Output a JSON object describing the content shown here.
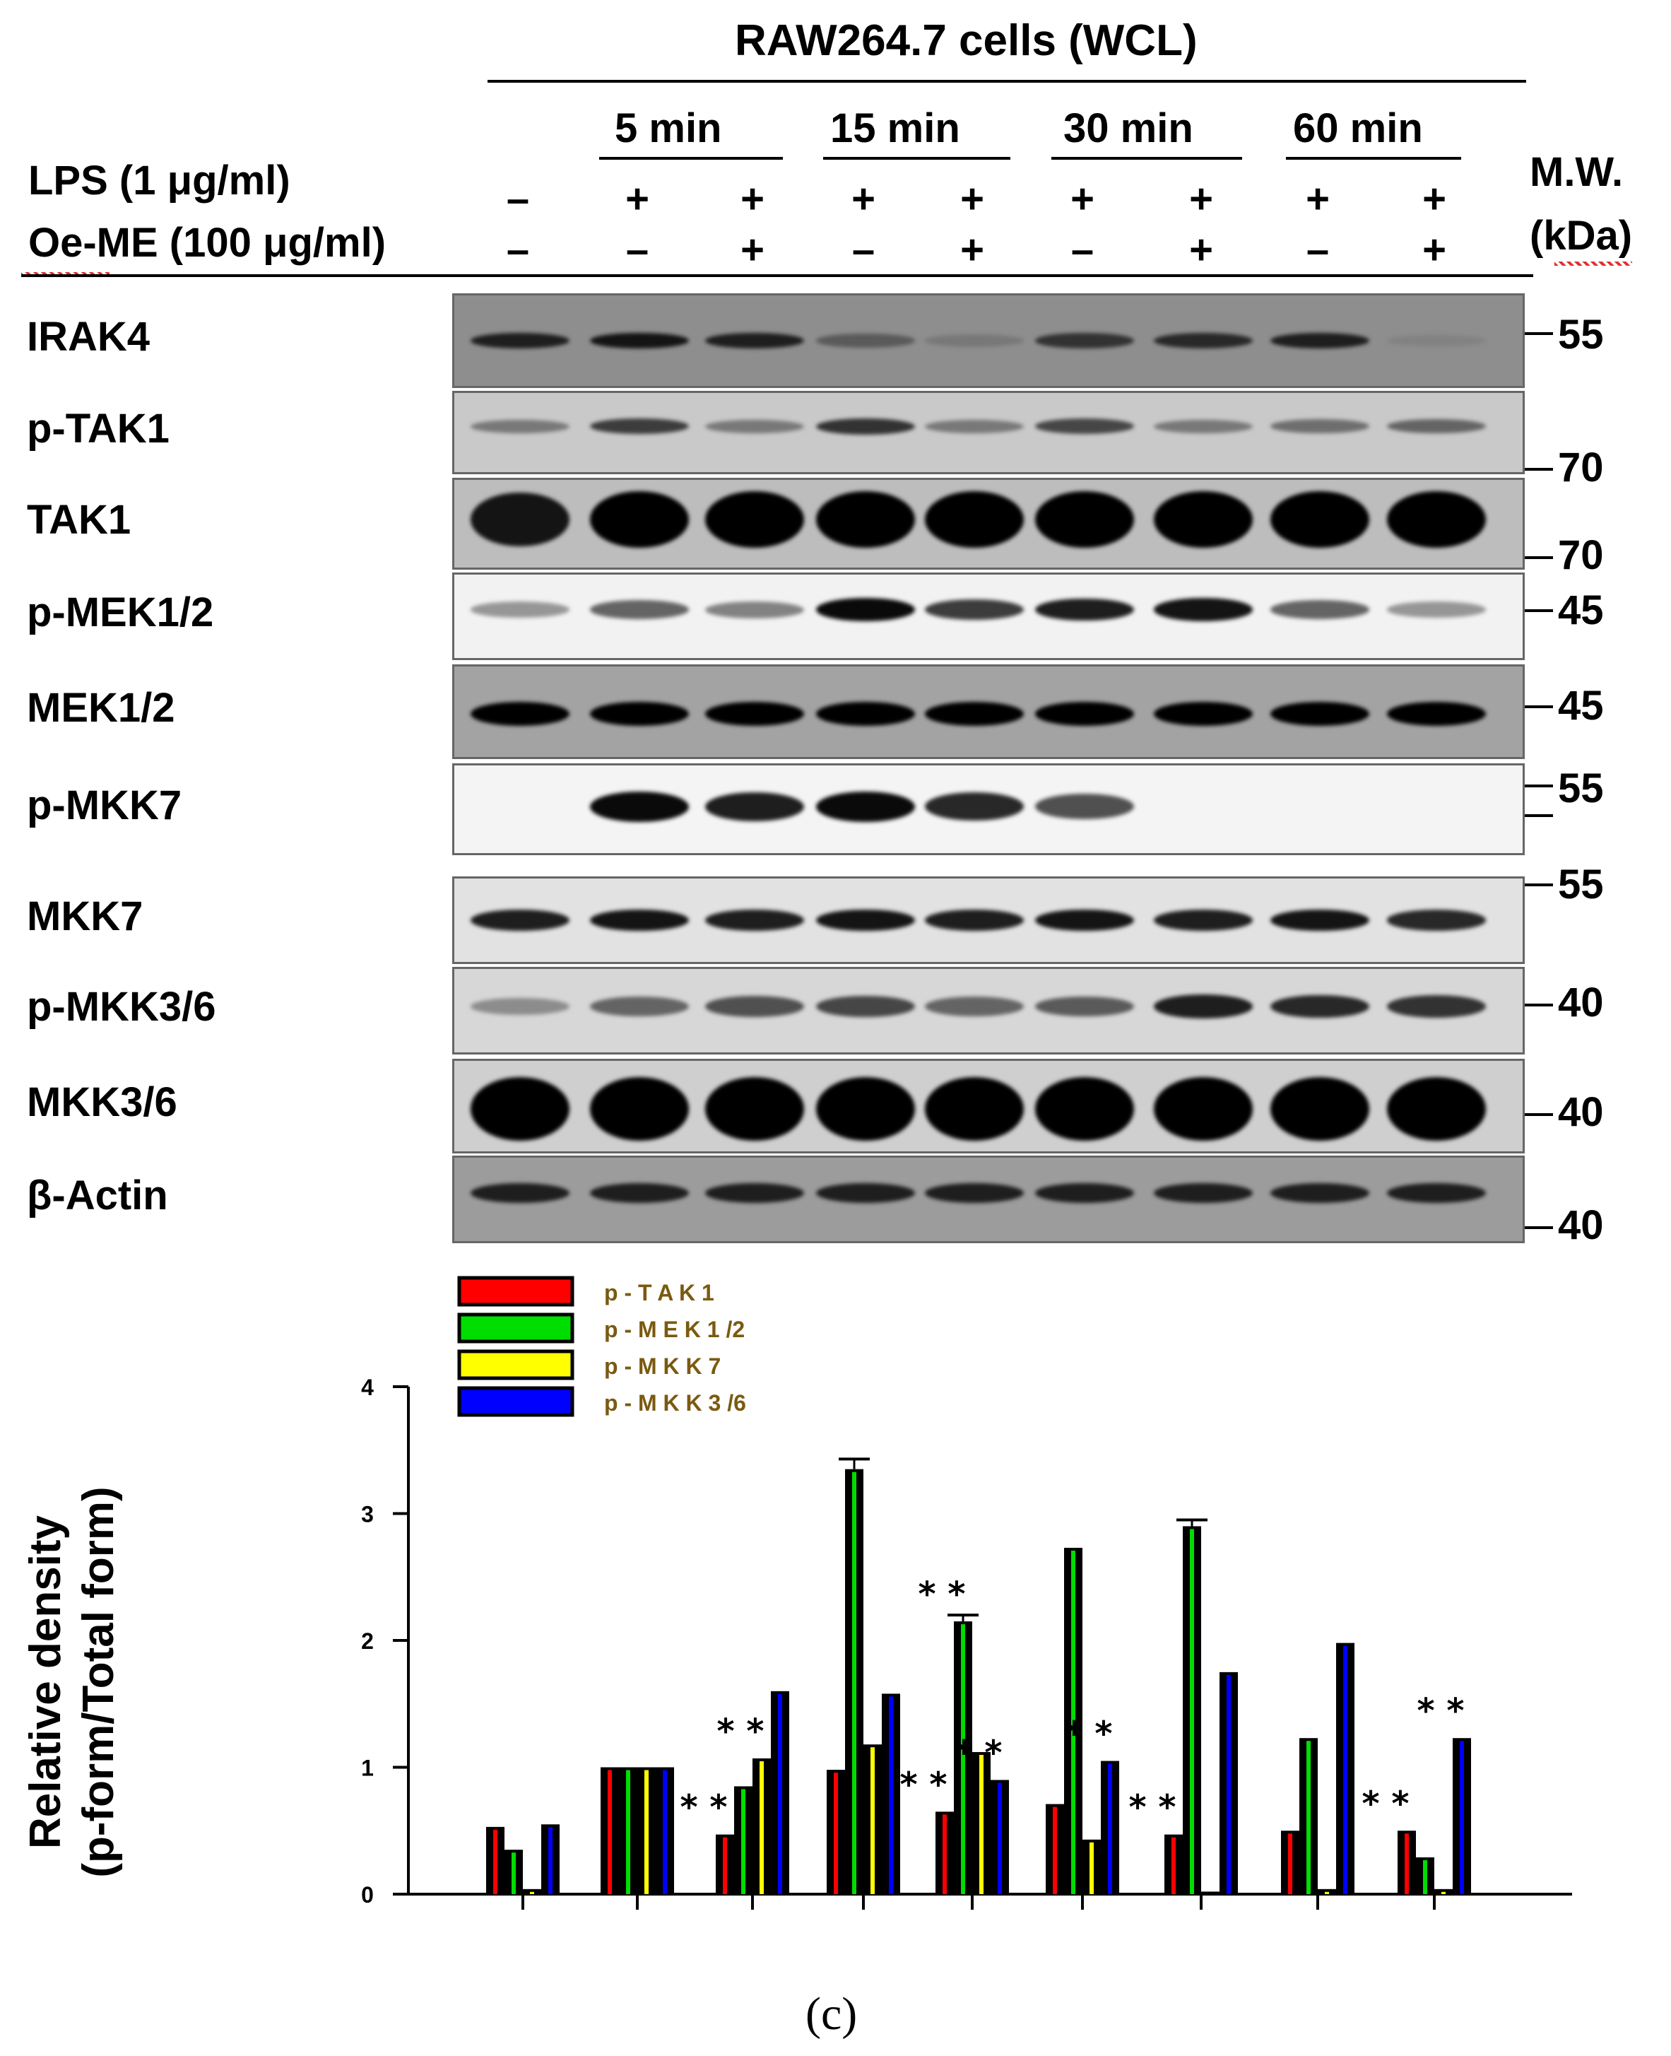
{
  "header": {
    "cell_line": "RAW264.7 cells (WCL)",
    "timepoints": [
      "5 min",
      "15 min",
      "30 min",
      "60 min"
    ],
    "treatments": [
      {
        "label": "LPS (1 μg/ml)",
        "signs": [
          "–",
          "+",
          "+",
          "+",
          "+",
          "+",
          "+",
          "+",
          "+"
        ]
      },
      {
        "label": "Oe-ME (100 μg/ml)",
        "signs": [
          "–",
          "–",
          "+",
          "–",
          "+",
          "–",
          "+",
          "–",
          "+"
        ]
      }
    ],
    "mw_label_line1": "M.W.",
    "mw_label_line2": "(kDa)"
  },
  "blots": [
    {
      "label": "IRAK4",
      "mw": [
        "55"
      ],
      "bg": "#8e8e8e",
      "intensity": [
        0.85,
        0.9,
        0.85,
        0.55,
        0.4,
        0.75,
        0.8,
        0.85,
        0.35
      ]
    },
    {
      "label": "p-TAK1",
      "mw": [
        "70"
      ],
      "bg": "#c9c9c9",
      "intensity": [
        0.4,
        0.7,
        0.4,
        0.75,
        0.4,
        0.65,
        0.4,
        0.45,
        0.5
      ]
    },
    {
      "label": "TAK1",
      "mw": [
        "70"
      ],
      "bg": "#bdbdbd",
      "intensity": [
        0.9,
        1.0,
        1.0,
        1.0,
        1.0,
        1.0,
        1.0,
        1.0,
        1.0
      ]
    },
    {
      "label": "p-MEK1/2",
      "mw": [
        "45"
      ],
      "bg": "#f2f2f2",
      "intensity": [
        0.25,
        0.5,
        0.35,
        0.95,
        0.7,
        0.85,
        0.9,
        0.5,
        0.25
      ]
    },
    {
      "label": "MEK1/2",
      "mw": [
        "45"
      ],
      "bg": "#a3a3a3",
      "intensity": [
        1.0,
        1.0,
        1.0,
        1.0,
        1.0,
        1.0,
        1.0,
        1.0,
        1.0
      ]
    },
    {
      "label": "p-MKK7",
      "mw": [
        "55"
      ],
      "bg": "#f4f4f4",
      "intensity": [
        0.0,
        0.95,
        0.85,
        0.95,
        0.8,
        0.6,
        0.0,
        0.0,
        0.0
      ]
    },
    {
      "label": "MKK7",
      "mw": [
        "55"
      ],
      "bg": "#e2e2e2",
      "intensity": [
        0.85,
        0.9,
        0.85,
        0.9,
        0.85,
        0.9,
        0.85,
        0.9,
        0.8
      ]
    },
    {
      "label": "p-MKK3/6",
      "mw": [
        "40"
      ],
      "bg": "#d7d7d7",
      "intensity": [
        0.3,
        0.5,
        0.6,
        0.65,
        0.5,
        0.55,
        0.85,
        0.8,
        0.75
      ]
    },
    {
      "label": "MKK3/6",
      "mw": [
        "40"
      ],
      "bg": "#cfcfcf",
      "intensity": [
        1.0,
        1.0,
        1.0,
        1.0,
        1.0,
        1.0,
        1.0,
        1.0,
        1.0
      ]
    },
    {
      "label": "β-Actin",
      "mw": [
        "40"
      ],
      "bg": "#9c9c9c",
      "intensity": [
        0.85,
        0.85,
        0.85,
        0.85,
        0.85,
        0.85,
        0.85,
        0.85,
        0.85
      ]
    }
  ],
  "chart_data": {
    "type": "bar",
    "ylabel_line1": "Relative density",
    "ylabel_line2": "(p-form/Total form)",
    "ylim": [
      0,
      4
    ],
    "yticks": [
      "0",
      "1",
      "2",
      "3",
      "4"
    ],
    "grid": false,
    "legend_position": "top-left",
    "series": [
      {
        "name": "p - T A K 1",
        "color": "#ff0000",
        "values": [
          0.53,
          1.0,
          0.47,
          0.98,
          0.65,
          0.71,
          0.47,
          0.5,
          0.5
        ]
      },
      {
        "name": "p - M E K 1 /2",
        "color": "#00dd00",
        "values": [
          0.35,
          1.0,
          0.85,
          3.35,
          2.15,
          2.73,
          2.9,
          1.23,
          0.29
        ]
      },
      {
        "name": "p - M K K 7",
        "color": "#ffff00",
        "values": [
          0.04,
          1.0,
          1.07,
          1.18,
          1.12,
          0.43,
          0.02,
          0.04,
          0.04
        ]
      },
      {
        "name": "p - M K K 3 /6",
        "color": "#0000ff",
        "values": [
          0.55,
          1.0,
          1.6,
          1.58,
          0.9,
          1.05,
          1.75,
          1.98,
          1.23
        ]
      }
    ],
    "error": [
      0.0,
      0.0,
      0.0,
      0.08,
      0.05,
      0.0,
      0.05,
      0.0,
      0.0
    ],
    "annotations": [
      {
        "group": 2,
        "series": 0,
        "text": "* *"
      },
      {
        "group": 2,
        "series": 2,
        "text": "* *"
      },
      {
        "group": 4,
        "series": 0,
        "text": "* *"
      },
      {
        "group": 4,
        "series": 1,
        "text": "* *"
      },
      {
        "group": 4,
        "series": 3,
        "text": "* *"
      },
      {
        "group": 5,
        "series": 3,
        "text": "* *"
      },
      {
        "group": 6,
        "series": 0,
        "text": "* *"
      },
      {
        "group": 8,
        "series": 0,
        "text": "* *"
      },
      {
        "group": 8,
        "series": 3,
        "text": "* *"
      }
    ]
  },
  "caption": "(c)"
}
